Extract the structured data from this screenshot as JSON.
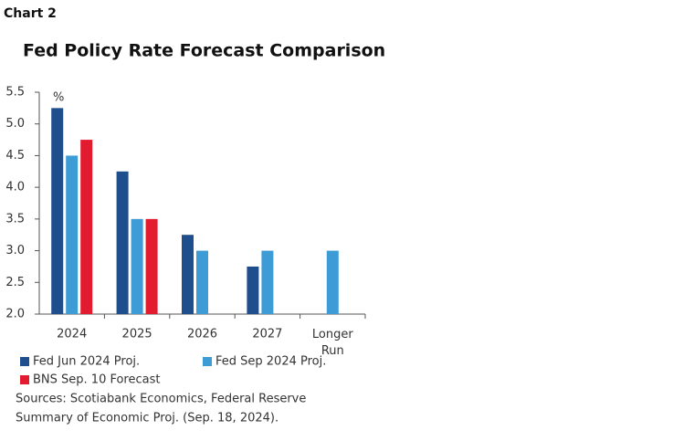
{
  "chart_data": {
    "type": "bar",
    "label": "Chart 2",
    "title": "Fed Policy Rate Forecast Comparison",
    "unit": "%",
    "categories": [
      "2024",
      "2025",
      "2026",
      "2027",
      "Longer Run"
    ],
    "series": [
      {
        "name": "Fed Jun 2024 Proj.",
        "color": "#1f4e8c",
        "values": [
          5.25,
          4.25,
          3.25,
          2.75,
          null
        ]
      },
      {
        "name": "Fed Sep 2024 Proj.",
        "color": "#3d9bd6",
        "values": [
          4.5,
          3.5,
          3.0,
          3.0,
          3.0
        ]
      },
      {
        "name": "BNS Sep. 10 Forecast",
        "color": "#e31b2e",
        "values": [
          4.75,
          3.5,
          null,
          null,
          null
        ]
      }
    ],
    "ylim": [
      2.0,
      5.5
    ],
    "yticks": [
      {
        "value": 2,
        "label": "2.0"
      },
      2.5,
      {
        "value": 3,
        "label": "3.0"
      },
      3.5,
      {
        "value": 4,
        "label": "4.0"
      },
      4.5,
      {
        "value": 5,
        "label": "5.0"
      },
      5.5
    ],
    "grid": false,
    "note": [
      "Sources: Scotiabank Economics, Federal Reserve",
      "Summary of Economic Proj. (Sep. 18, 2024)."
    ]
  }
}
